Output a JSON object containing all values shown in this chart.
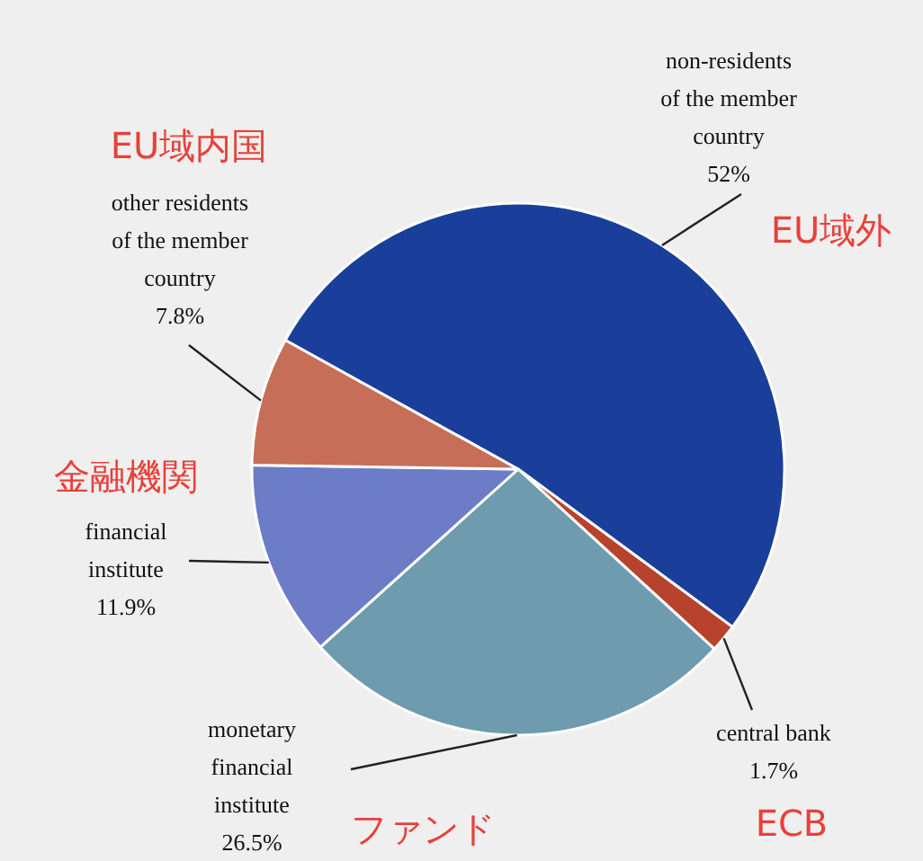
{
  "chart_data": {
    "type": "pie",
    "categories": [
      "non-residents of the member country",
      "central bank",
      "monetary financial institute",
      "financial institute",
      "other residents of the member country"
    ],
    "values": [
      52,
      1.7,
      26.5,
      11.9,
      7.8
    ],
    "value_labels": [
      "52%",
      "1.7%",
      "26.5%",
      "11.9%",
      "7.8%"
    ],
    "colors": [
      "#1a3f9a",
      "#b8432c",
      "#6e9cae",
      "#6d7cc6",
      "#c66e58"
    ],
    "annotations": [
      "EU域外",
      "ECB",
      "ファンド",
      "金融機関",
      "EU域内国"
    ]
  }
}
